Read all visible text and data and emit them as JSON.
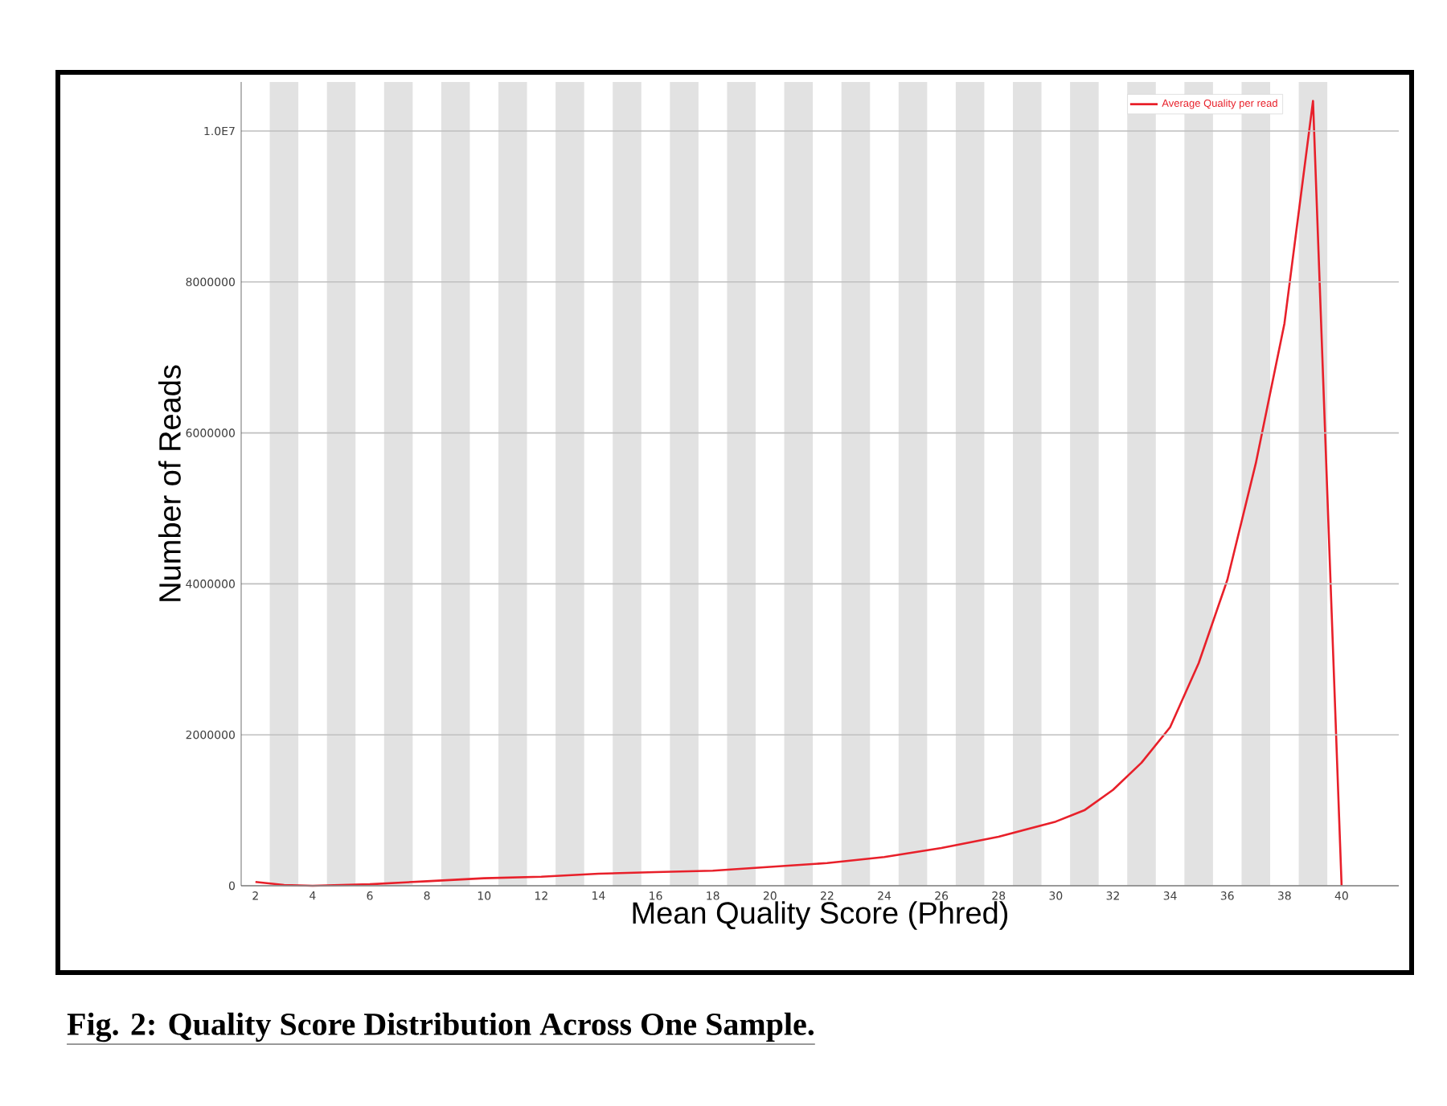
{
  "chart_data": {
    "type": "line",
    "xlabel": "Mean Quality Score (Phred)",
    "ylabel": "Number of Reads",
    "x": [
      2,
      3,
      4,
      6,
      8,
      10,
      12,
      14,
      16,
      18,
      20,
      22,
      24,
      26,
      28,
      30,
      31,
      32,
      33,
      34,
      35,
      36,
      37,
      38,
      39,
      40
    ],
    "series": [
      {
        "name": "Average Quality per read",
        "color": "#e8202a",
        "values": [
          50000,
          10000,
          0,
          20000,
          60000,
          100000,
          120000,
          160000,
          180000,
          200000,
          250000,
          300000,
          380000,
          500000,
          650000,
          850000,
          1000000,
          1270000,
          1630000,
          2100000,
          2950000,
          4050000,
          5600000,
          7450000,
          10400000,
          0
        ]
      }
    ],
    "xlim": [
      1.5,
      42
    ],
    "ylim": [
      0,
      10650000
    ],
    "xticks": [
      2,
      4,
      6,
      8,
      10,
      12,
      14,
      16,
      18,
      20,
      22,
      24,
      26,
      28,
      30,
      32,
      34,
      36,
      38,
      40
    ],
    "yticks": [
      0,
      2000000,
      4000000,
      6000000,
      8000000,
      {
        "value": 10000000,
        "label": "1.0E7"
      }
    ],
    "grid": "y",
    "legend": "top right",
    "line_style": "solid",
    "bands": [
      {
        "axis": "x",
        "from": 2.5,
        "to": 3.5,
        "color": "#e2e2e2"
      },
      {
        "axis": "x",
        "from": 4.5,
        "to": 5.5,
        "color": "#e2e2e2"
      },
      {
        "axis": "x",
        "from": 6.5,
        "to": 7.5,
        "color": "#e2e2e2"
      },
      {
        "axis": "x",
        "from": 8.5,
        "to": 9.5,
        "color": "#e2e2e2"
      },
      {
        "axis": "x",
        "from": 10.5,
        "to": 11.5,
        "color": "#e2e2e2"
      },
      {
        "axis": "x",
        "from": 12.5,
        "to": 13.5,
        "color": "#e2e2e2"
      },
      {
        "axis": "x",
        "from": 14.5,
        "to": 15.5,
        "color": "#e2e2e2"
      },
      {
        "axis": "x",
        "from": 16.5,
        "to": 17.5,
        "color": "#e2e2e2"
      },
      {
        "axis": "x",
        "from": 18.5,
        "to": 19.5,
        "color": "#e2e2e2"
      },
      {
        "axis": "x",
        "from": 20.5,
        "to": 21.5,
        "color": "#e2e2e2"
      },
      {
        "axis": "x",
        "from": 22.5,
        "to": 23.5,
        "color": "#e2e2e2"
      },
      {
        "axis": "x",
        "from": 24.5,
        "to": 25.5,
        "color": "#e2e2e2"
      },
      {
        "axis": "x",
        "from": 26.5,
        "to": 27.5,
        "color": "#e2e2e2"
      },
      {
        "axis": "x",
        "from": 28.5,
        "to": 29.5,
        "color": "#e2e2e2"
      },
      {
        "axis": "x",
        "from": 30.5,
        "to": 31.5,
        "color": "#e2e2e2"
      },
      {
        "axis": "x",
        "from": 32.5,
        "to": 33.5,
        "color": "#e2e2e2"
      },
      {
        "axis": "x",
        "from": 34.5,
        "to": 35.5,
        "color": "#e2e2e2"
      },
      {
        "axis": "x",
        "from": 36.5,
        "to": 37.5,
        "color": "#e2e2e2"
      },
      {
        "axis": "x",
        "from": 38.5,
        "to": 39.5,
        "color": "#e2e2e2"
      }
    ],
    "annotations": [
      "**Fig. 2: Quality Score Distribution Across One Sample.**"
    ]
  }
}
